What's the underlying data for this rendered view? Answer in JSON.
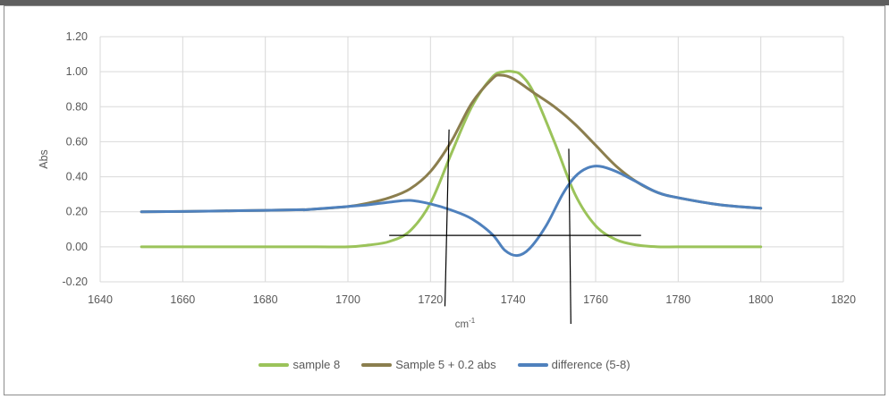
{
  "chart_data": {
    "type": "line",
    "title": "",
    "xlabel": "cm",
    "xlabel_sup": "-1",
    "ylabel": "Abs",
    "xlim": [
      1640,
      1820
    ],
    "ylim": [
      -0.2,
      1.2
    ],
    "xticks": [
      "1640",
      "1660",
      "1680",
      "1700",
      "1720",
      "1740",
      "1760",
      "1780",
      "1800",
      "1820"
    ],
    "yticks": [
      "-0.20",
      "0.00",
      "0.20",
      "0.40",
      "0.60",
      "0.80",
      "1.00",
      "1.20"
    ],
    "grid": true,
    "legend_position": "bottom",
    "series": [
      {
        "name": "sample 8",
        "color": "#9bc35a",
        "x": [
          1650,
          1660,
          1670,
          1680,
          1689,
          1690,
          1700,
          1705,
          1710,
          1715,
          1720,
          1725,
          1730,
          1735,
          1738,
          1740,
          1742,
          1745,
          1750,
          1755,
          1760,
          1765,
          1770,
          1775,
          1780,
          1790,
          1800
        ],
        "y": [
          0.0,
          0.0,
          0.0,
          0.0,
          0.0,
          0.0,
          0.0,
          0.01,
          0.03,
          0.09,
          0.25,
          0.53,
          0.8,
          0.97,
          1.0,
          1.0,
          0.98,
          0.88,
          0.6,
          0.3,
          0.12,
          0.04,
          0.01,
          0.0,
          0.0,
          0.0,
          0.0
        ]
      },
      {
        "name": "Sample 5 + 0.2 abs",
        "color": "#8b7e4e",
        "x": [
          1650,
          1660,
          1670,
          1680,
          1689,
          1690,
          1700,
          1705,
          1710,
          1715,
          1720,
          1725,
          1730,
          1735,
          1737,
          1740,
          1745,
          1750,
          1755,
          1760,
          1765,
          1770,
          1775,
          1780,
          1790,
          1800
        ],
        "y": [
          0.2,
          0.202,
          0.205,
          0.208,
          0.212,
          0.212,
          0.23,
          0.25,
          0.28,
          0.33,
          0.43,
          0.6,
          0.82,
          0.96,
          0.98,
          0.96,
          0.88,
          0.8,
          0.7,
          0.58,
          0.46,
          0.37,
          0.31,
          0.28,
          0.24,
          0.22
        ]
      },
      {
        "name": "difference (5-8)",
        "color": "#4f81bd",
        "x": [
          1650,
          1660,
          1670,
          1680,
          1689,
          1690,
          1700,
          1705,
          1710,
          1715,
          1720,
          1725,
          1730,
          1735,
          1738,
          1741,
          1744,
          1748,
          1752,
          1755,
          1758,
          1761,
          1765,
          1770,
          1775,
          1780,
          1790,
          1800
        ],
        "y": [
          0.2,
          0.202,
          0.205,
          0.208,
          0.212,
          0.212,
          0.23,
          0.24,
          0.255,
          0.265,
          0.245,
          0.21,
          0.16,
          0.07,
          -0.02,
          -0.05,
          -0.01,
          0.12,
          0.3,
          0.4,
          0.45,
          0.46,
          0.43,
          0.37,
          0.31,
          0.28,
          0.24,
          0.22
        ]
      }
    ],
    "annotation_lines": [
      {
        "x1": 1710,
        "y1": 0.065,
        "x2": 1771,
        "y2": 0.065
      },
      {
        "x1": 1724.5,
        "y1": 0.67,
        "x2": 1723.5,
        "y2": -0.34
      },
      {
        "x1": 1753.5,
        "y1": 0.56,
        "x2": 1754,
        "y2": -0.44
      }
    ]
  }
}
